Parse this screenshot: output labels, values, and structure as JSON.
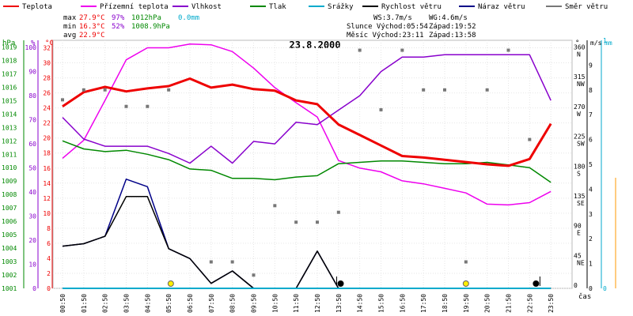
{
  "legend": [
    {
      "label": "Teplota",
      "color": "#ee0000"
    },
    {
      "label": "Přízemní teplota",
      "color": "#ee00ee"
    },
    {
      "label": "Vlhkost",
      "color": "#8800cc"
    },
    {
      "label": "Tlak",
      "color": "#008800"
    },
    {
      "label": "Srážky",
      "color": "#00aacc"
    },
    {
      "label": "Rychlost větru",
      "color": "#000000"
    },
    {
      "label": "Náraz větru",
      "color": "#000088"
    },
    {
      "label": "Směr větru",
      "color": "#777777"
    }
  ],
  "stats": {
    "max": {
      "label": "max",
      "temp": "27.9°C",
      "hum": "97%",
      "press": "1012hPa",
      "rain": "0.0mm"
    },
    "min": {
      "label": "min",
      "temp": "16.3°C",
      "hum": "52%",
      "press": "1008.9hPa"
    },
    "avg": {
      "label": "avg",
      "temp": "22.9°C"
    }
  },
  "wind_info": {
    "ws": "WS:3.7m/s",
    "wg": "WG:4.6m/s"
  },
  "sun": {
    "sunrise": "Slunce Východ:05:54",
    "sunset": "Západ:19:52"
  },
  "moon": {
    "moonrise": "Měsíc  Východ:23:11",
    "moonset": "Západ:13:58"
  },
  "date": "23.8.2000",
  "axis_units": {
    "hpa": "hPa",
    "pct": "%",
    "degc": "°C",
    "deg": "°",
    "ms": "m/s",
    "mm": "mm",
    "time": "čas"
  },
  "chart_data": {
    "type": "line",
    "title": "23.8.2000",
    "x": [
      "00:50",
      "01:50",
      "02:50",
      "03:50",
      "04:50",
      "05:50",
      "06:50",
      "07:50",
      "08:50",
      "09:50",
      "10:50",
      "11:50",
      "12:50",
      "13:50",
      "14:50",
      "15:50",
      "16:50",
      "17:50",
      "18:50",
      "19:50",
      "20:50",
      "21:50",
      "22:50",
      "23:50"
    ],
    "xlabel": "čas",
    "series": [
      {
        "name": "Teplota",
        "unit": "°C",
        "color": "#ee0000",
        "values": [
          24.2,
          26.1,
          26.8,
          26.2,
          26.6,
          26.9,
          27.9,
          26.7,
          27.1,
          26.5,
          26.3,
          25.0,
          24.5,
          21.8,
          20.4,
          19.0,
          17.6,
          17.4,
          17.1,
          16.8,
          16.5,
          16.3,
          17.2,
          21.9
        ]
      },
      {
        "name": "Přízemní teplota",
        "unit": "°C",
        "color": "#ee00ee",
        "values": [
          17.3,
          19.7,
          25.0,
          30.4,
          32.0,
          32.0,
          32.5,
          32.4,
          31.5,
          29.3,
          26.7,
          24.7,
          22.8,
          17.0,
          16.0,
          15.5,
          14.3,
          13.9,
          13.3,
          12.7,
          11.2,
          11.1,
          11.4,
          12.9
        ]
      },
      {
        "name": "Vlhkost",
        "unit": "%",
        "color": "#8800cc",
        "values": [
          71,
          62,
          59,
          59,
          59,
          56,
          52,
          59,
          52,
          61,
          60,
          69,
          68,
          74,
          80,
          90,
          96,
          96,
          97,
          97,
          97,
          97,
          97,
          78
        ]
      },
      {
        "name": "Tlak",
        "unit": "hPa",
        "color": "#008800",
        "values": [
          1012,
          1011.4,
          1011.2,
          1011.3,
          1011,
          1010.6,
          1009.9,
          1009.8,
          1009.2,
          1009.2,
          1009.1,
          1009.3,
          1009.4,
          1010.3,
          1010.4,
          1010.5,
          1010.5,
          1010.4,
          1010.3,
          1010.3,
          1010.4,
          1010.2,
          1010.0,
          1008.9
        ]
      },
      {
        "name": "Srážky",
        "unit": "mm",
        "color": "#00aacc",
        "values": [
          0,
          0,
          0,
          0,
          0,
          0,
          0,
          0,
          0,
          0,
          0,
          0,
          0,
          0,
          0,
          0,
          0,
          0,
          0,
          0,
          0,
          0,
          0,
          0
        ]
      },
      {
        "name": "Rychlost větru",
        "unit": "m/s",
        "color": "#000000",
        "values": [
          1.7,
          1.8,
          2.1,
          3.7,
          3.7,
          1.6,
          1.2,
          0.2,
          0.7,
          0,
          0,
          0,
          1.5,
          0,
          0,
          0,
          0,
          0,
          0,
          0,
          0,
          0,
          0,
          0
        ]
      },
      {
        "name": "Náraz větru",
        "unit": "m/s",
        "color": "#000088",
        "values": [
          1.7,
          1.8,
          2.1,
          4.4,
          4.1,
          1.6,
          1.2,
          0.2,
          0.7,
          0,
          0,
          0,
          1.5,
          0,
          0,
          0,
          0,
          0,
          0,
          0,
          0,
          0,
          0,
          0
        ]
      },
      {
        "name": "Směr větru",
        "unit": "°",
        "color": "#777777",
        "type": "scatter",
        "values": [
          285,
          300,
          300,
          275,
          275,
          300,
          null,
          40,
          40,
          20,
          125,
          100,
          100,
          115,
          360,
          270,
          360,
          300,
          300,
          40,
          300,
          360,
          225,
          null
        ]
      }
    ],
    "axes": {
      "temp": {
        "label": "°C",
        "min": 0,
        "max": 33,
        "ticks": [
          0,
          2,
          4,
          6,
          8,
          10,
          12,
          14,
          16,
          18,
          20,
          22,
          24,
          26,
          28,
          30,
          32
        ]
      },
      "humidity": {
        "label": "%",
        "min": 0,
        "max": 103,
        "ticks": [
          0,
          10,
          20,
          30,
          40,
          50,
          60,
          70,
          80,
          90,
          100
        ]
      },
      "pressure": {
        "label": "hPa",
        "min": 1001,
        "max": 1019.5,
        "ticks": [
          1001,
          1002,
          1003,
          1004,
          1005,
          1006,
          1007,
          1008,
          1009,
          1010,
          1011,
          1012,
          1013,
          1014,
          1015,
          1016,
          1017,
          1018,
          1019
        ]
      },
      "direction": {
        "label": "°",
        "min": 0,
        "max": 375,
        "ticks": [
          {
            "v": 0,
            "t": "0"
          },
          {
            "v": 45,
            "t": "45",
            "c": "NE"
          },
          {
            "v": 90,
            "t": "90",
            "c": "E"
          },
          {
            "v": 135,
            "t": "135",
            "c": "SE"
          },
          {
            "v": 180,
            "t": "180",
            "c": "S"
          },
          {
            "v": 225,
            "t": "225",
            "c": "SW"
          },
          {
            "v": 270,
            "t": "270",
            "c": "W"
          },
          {
            "v": 315,
            "t": "315",
            "c": "NW"
          },
          {
            "v": 360,
            "t": "360",
            "c": "N"
          }
        ]
      },
      "wind": {
        "label": "m/s",
        "min": 0,
        "max": 10,
        "ticks": [
          0,
          1,
          2,
          3,
          4,
          5,
          6,
          7,
          8,
          9
        ]
      },
      "rain": {
        "label": "mm",
        "min": 0,
        "max": 1,
        "ticks": [
          0,
          1
        ]
      }
    },
    "sun_markers": [
      {
        "x": 5.1,
        "kind": "sunrise"
      },
      {
        "x": 13.1,
        "kind": "moonset"
      },
      {
        "x": 19.0,
        "kind": "sunset"
      },
      {
        "x": 22.3,
        "kind": "moonrise"
      }
    ],
    "grid": true
  }
}
